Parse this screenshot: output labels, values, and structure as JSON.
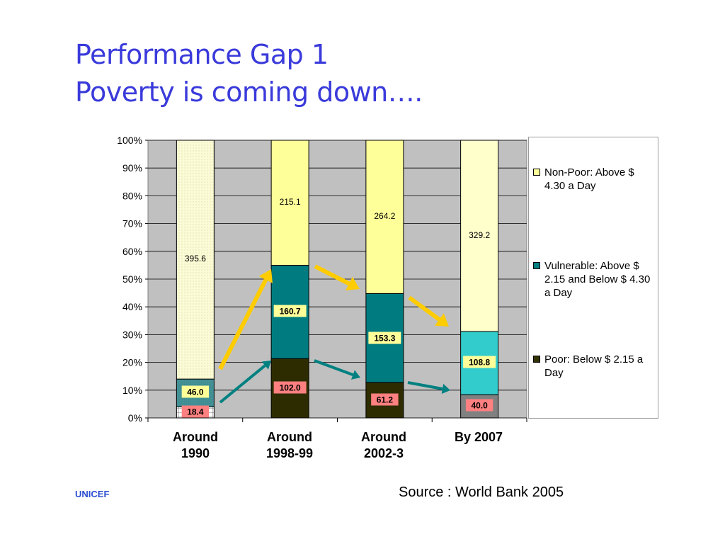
{
  "title": {
    "line1": "Performance Gap 1",
    "line2": "Poverty is coming down…."
  },
  "footer": {
    "org": "UNICEF",
    "source": "Source : World Bank 2005"
  },
  "chart_data": {
    "type": "bar",
    "stacked": "percent",
    "categories": [
      "Around\n1990",
      "Around\n1998-99",
      "Around\n2002-3",
      "By 2007"
    ],
    "series": [
      {
        "name": "Poor: Below $ 2.15 a Day",
        "values": [
          18.4,
          102.0,
          61.2,
          40.0
        ],
        "labels": [
          "18.4",
          "102.0",
          "61.2",
          "40.0"
        ]
      },
      {
        "name": "Vulnerable: Above $ 2.15 and Below $ 4.30 a Day",
        "values": [
          46.0,
          160.7,
          153.3,
          108.8
        ],
        "labels": [
          "46.0",
          "160.7",
          "153.3",
          "108.8"
        ]
      },
      {
        "name": "Non-Poor: Above $ 4.30 a Day",
        "values": [
          395.6,
          215.1,
          264.2,
          329.2
        ],
        "labels": [
          "395.6",
          "215.1",
          "264.2",
          "329.2"
        ]
      }
    ],
    "segment_colors": [
      [
        "#ffffff",
        "#2d2c00",
        "#2d2c00",
        "#808080"
      ],
      [
        "#3e8d92",
        "#007b80",
        "#007b80",
        "#33cccc"
      ],
      [
        "#fbfbd6",
        "#ffff99",
        "#ffff99",
        "#ffffcc"
      ]
    ],
    "legend_colors": [
      "#ffff99",
      "#008080",
      "#333300"
    ],
    "label_box_colors": {
      "poor": "#ff8080",
      "vulnerable": "#ffff99"
    },
    "ylim": [
      0,
      100
    ],
    "yticks": [
      "0%",
      "10%",
      "20%",
      "30%",
      "40%",
      "50%",
      "60%",
      "70%",
      "80%",
      "90%",
      "100%"
    ],
    "grid": true,
    "plot_background": "#c0c0c0",
    "legend_position": "right",
    "arrow_colors": {
      "yellow": "#ffcc00",
      "teal": "#008080"
    }
  },
  "legend": {
    "items": [
      {
        "text": "Non-Poor: Above $ 4.30 a Day"
      },
      {
        "text": "Vulnerable: Above $ 2.15 and Below $ 4.30 a Day"
      },
      {
        "text": "Poor: Below $ 2.15 a Day"
      }
    ]
  },
  "xaxis": {
    "labels": [
      {
        "line1": "Around",
        "line2": "1990"
      },
      {
        "line1": "Around",
        "line2": "1998-99"
      },
      {
        "line1": "Around",
        "line2": "2002-3"
      },
      {
        "line1": "By 2007",
        "line2": ""
      }
    ]
  }
}
